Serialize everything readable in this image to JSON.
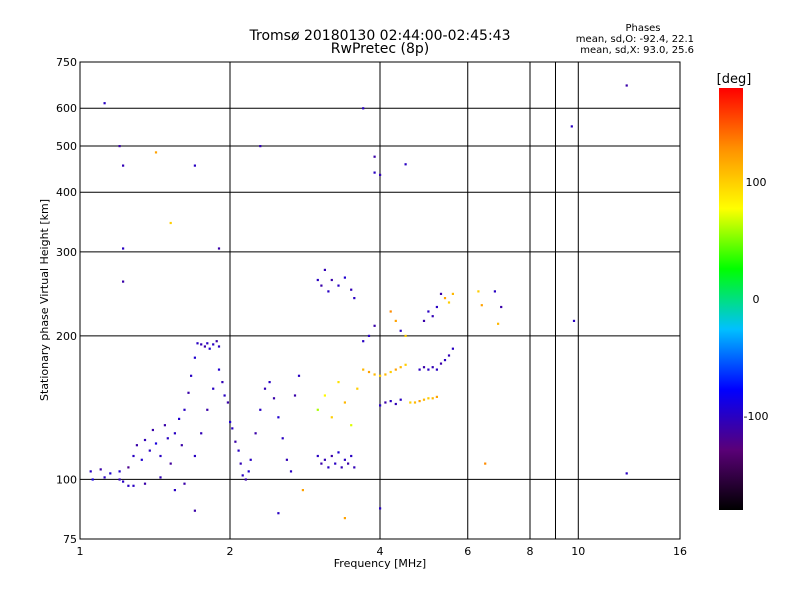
{
  "chart_data": {
    "type": "scatter",
    "title": "Tromsø 20180130 02:44:00-02:45:43",
    "subtitle": "RwPretec (8p)",
    "xlabel": "Frequency [MHz]",
    "ylabel": "Stationary phase Virtual Height [km]",
    "xscale": "log",
    "yscale": "log",
    "xlim": [
      1,
      16
    ],
    "ylim": [
      75,
      750
    ],
    "xticks": [
      1,
      2,
      4,
      6,
      8,
      10,
      16
    ],
    "xgrid": [
      2,
      4,
      6,
      8,
      9,
      10
    ],
    "yticks": [
      75,
      100,
      200,
      300,
      400,
      500,
      600,
      750
    ],
    "ygrid": [
      100,
      200,
      300,
      400,
      500,
      600
    ],
    "grid": true,
    "colorbar": {
      "label": "[deg]",
      "ticks": [
        100,
        0,
        -100
      ],
      "range": [
        -180,
        180
      ],
      "colors": [
        "#000000",
        "#5a0078",
        "#0000ff",
        "#00c0ff",
        "#00ff00",
        "#ffff00",
        "#ff9000",
        "#ff0000"
      ]
    },
    "stats": {
      "header": "Phases",
      "line1": "mean, sd,O: -92.4, 22.1",
      "line2": "mean, sd,X:  93.0, 25.6"
    },
    "points_encoding": "[frequency_MHz, virtual_height_km, phase_deg]",
    "points": [
      [
        1.05,
        104,
        -100
      ],
      [
        1.06,
        100,
        -90
      ],
      [
        1.1,
        105,
        -110
      ],
      [
        1.12,
        101,
        -100
      ],
      [
        1.15,
        103,
        -95
      ],
      [
        1.2,
        100,
        -105
      ],
      [
        1.22,
        99,
        -100
      ],
      [
        1.25,
        106,
        -120
      ],
      [
        1.28,
        112,
        -100
      ],
      [
        1.3,
        118,
        -110
      ],
      [
        1.33,
        110,
        -95
      ],
      [
        1.35,
        121,
        -105
      ],
      [
        1.38,
        115,
        -100
      ],
      [
        1.4,
        127,
        -110
      ],
      [
        1.42,
        119,
        -90
      ],
      [
        1.45,
        112,
        -100
      ],
      [
        1.48,
        130,
        -110
      ],
      [
        1.5,
        122,
        -100
      ],
      [
        1.52,
        108,
        -115
      ],
      [
        1.55,
        125,
        -100
      ],
      [
        1.58,
        134,
        -95
      ],
      [
        1.6,
        118,
        -110
      ],
      [
        1.62,
        140,
        -100
      ],
      [
        1.65,
        152,
        -110
      ],
      [
        1.67,
        165,
        -100
      ],
      [
        1.7,
        180,
        -95
      ],
      [
        1.72,
        193,
        -100
      ],
      [
        1.75,
        192,
        -105
      ],
      [
        1.78,
        190,
        -110
      ],
      [
        1.8,
        193,
        -100
      ],
      [
        1.82,
        188,
        -95
      ],
      [
        1.85,
        192,
        -100
      ],
      [
        1.88,
        195,
        -110
      ],
      [
        1.9,
        190,
        -100
      ],
      [
        1.93,
        160,
        -105
      ],
      [
        1.95,
        150,
        -100
      ],
      [
        1.98,
        145,
        -110
      ],
      [
        2.0,
        132,
        -95
      ],
      [
        2.02,
        128,
        -100
      ],
      [
        2.05,
        120,
        -110
      ],
      [
        2.08,
        115,
        -100
      ],
      [
        2.1,
        108,
        -105
      ],
      [
        2.12,
        102,
        -100
      ],
      [
        2.15,
        100,
        -110
      ],
      [
        2.18,
        104,
        -95
      ],
      [
        2.2,
        110,
        -100
      ],
      [
        2.25,
        125,
        -110
      ],
      [
        2.3,
        140,
        -100
      ],
      [
        2.35,
        155,
        -105
      ],
      [
        2.4,
        160,
        -100
      ],
      [
        2.45,
        148,
        -110
      ],
      [
        2.5,
        135,
        -95
      ],
      [
        2.55,
        122,
        -100
      ],
      [
        2.6,
        110,
        -105
      ],
      [
        2.65,
        104,
        -100
      ],
      [
        2.7,
        150,
        -110
      ],
      [
        2.75,
        165,
        -100
      ],
      [
        1.7,
        112,
        -100
      ],
      [
        1.75,
        125,
        -105
      ],
      [
        1.8,
        140,
        -110
      ],
      [
        1.85,
        155,
        -100
      ],
      [
        1.9,
        170,
        -95
      ],
      [
        1.62,
        98,
        -110
      ],
      [
        1.55,
        95,
        -100
      ],
      [
        1.45,
        101,
        -105
      ],
      [
        1.35,
        98,
        -110
      ],
      [
        1.25,
        97,
        -100
      ],
      [
        1.2,
        104,
        -95
      ],
      [
        1.28,
        97,
        -100
      ],
      [
        3.0,
        262,
        -100
      ],
      [
        3.05,
        255,
        -110
      ],
      [
        3.1,
        275,
        -105
      ],
      [
        3.15,
        248,
        -100
      ],
      [
        3.2,
        262,
        -110
      ],
      [
        3.3,
        255,
        -100
      ],
      [
        3.4,
        265,
        -95
      ],
      [
        3.5,
        250,
        -105
      ],
      [
        3.55,
        240,
        -100
      ],
      [
        3.0,
        112,
        -100
      ],
      [
        3.05,
        108,
        -110
      ],
      [
        3.1,
        110,
        -105
      ],
      [
        3.15,
        106,
        -100
      ],
      [
        3.2,
        112,
        -110
      ],
      [
        3.25,
        108,
        -100
      ],
      [
        3.3,
        114,
        -95
      ],
      [
        3.35,
        106,
        -105
      ],
      [
        3.4,
        110,
        -100
      ],
      [
        3.45,
        108,
        -110
      ],
      [
        3.5,
        112,
        -100
      ],
      [
        3.55,
        106,
        -105
      ],
      [
        3.0,
        140,
        60
      ],
      [
        3.1,
        150,
        80
      ],
      [
        3.2,
        135,
        100
      ],
      [
        3.3,
        160,
        90
      ],
      [
        3.4,
        145,
        110
      ],
      [
        3.5,
        130,
        70
      ],
      [
        3.6,
        155,
        100
      ],
      [
        3.7,
        170,
        110
      ],
      [
        3.8,
        168,
        120
      ],
      [
        3.9,
        166,
        110
      ],
      [
        4.0,
        165,
        100
      ],
      [
        4.1,
        166,
        110
      ],
      [
        4.2,
        168,
        100
      ],
      [
        4.3,
        170,
        120
      ],
      [
        4.4,
        172,
        110
      ],
      [
        4.5,
        174,
        100
      ],
      [
        4.0,
        143,
        -100
      ],
      [
        4.1,
        145,
        -110
      ],
      [
        4.2,
        146,
        -100
      ],
      [
        4.3,
        144,
        -105
      ],
      [
        4.4,
        147,
        -100
      ],
      [
        4.6,
        145,
        100
      ],
      [
        4.7,
        145,
        110
      ],
      [
        4.8,
        146,
        120
      ],
      [
        4.9,
        147,
        110
      ],
      [
        5.0,
        148,
        100
      ],
      [
        5.1,
        148,
        110
      ],
      [
        5.2,
        149,
        120
      ],
      [
        4.8,
        170,
        -100
      ],
      [
        4.9,
        172,
        -110
      ],
      [
        5.0,
        170,
        -100
      ],
      [
        5.1,
        172,
        -105
      ],
      [
        5.2,
        170,
        -100
      ],
      [
        5.3,
        175,
        -110
      ],
      [
        5.4,
        178,
        -100
      ],
      [
        5.5,
        182,
        -105
      ],
      [
        5.6,
        188,
        -100
      ],
      [
        4.9,
        215,
        -110
      ],
      [
        5.0,
        225,
        -100
      ],
      [
        5.1,
        220,
        -105
      ],
      [
        5.2,
        230,
        -100
      ],
      [
        5.3,
        245,
        -110
      ],
      [
        5.4,
        240,
        120
      ],
      [
        5.5,
        235,
        100
      ],
      [
        5.6,
        245,
        110
      ],
      [
        4.2,
        225,
        130
      ],
      [
        4.3,
        215,
        120
      ],
      [
        4.4,
        205,
        -100
      ],
      [
        4.5,
        200,
        100
      ],
      [
        3.8,
        200,
        -100
      ],
      [
        3.9,
        210,
        -110
      ],
      [
        3.7,
        195,
        -100
      ],
      [
        6.3,
        248,
        100
      ],
      [
        6.4,
        232,
        120
      ],
      [
        6.8,
        248,
        -100
      ],
      [
        7.0,
        230,
        -110
      ],
      [
        6.9,
        212,
        110
      ],
      [
        1.12,
        615,
        -100
      ],
      [
        1.2,
        500,
        -110
      ],
      [
        1.22,
        455,
        -105
      ],
      [
        1.22,
        305,
        -100
      ],
      [
        1.22,
        260,
        -110
      ],
      [
        1.42,
        485,
        120
      ],
      [
        1.52,
        345,
        100
      ],
      [
        1.7,
        455,
        -100
      ],
      [
        1.9,
        305,
        -110
      ],
      [
        2.3,
        500,
        -105
      ],
      [
        3.7,
        600,
        -100
      ],
      [
        3.9,
        475,
        -110
      ],
      [
        3.9,
        440,
        -100
      ],
      [
        4.0,
        435,
        -105
      ],
      [
        4.5,
        458,
        -100
      ],
      [
        9.7,
        550,
        -100
      ],
      [
        12.5,
        670,
        -110
      ],
      [
        9.8,
        215,
        -100
      ],
      [
        6.5,
        108,
        130
      ],
      [
        12.5,
        103,
        -100
      ],
      [
        1.7,
        86,
        -110
      ],
      [
        2.5,
        85,
        -100
      ],
      [
        3.4,
        83,
        120
      ],
      [
        4.0,
        87,
        -100
      ],
      [
        2.8,
        95,
        120
      ]
    ]
  }
}
